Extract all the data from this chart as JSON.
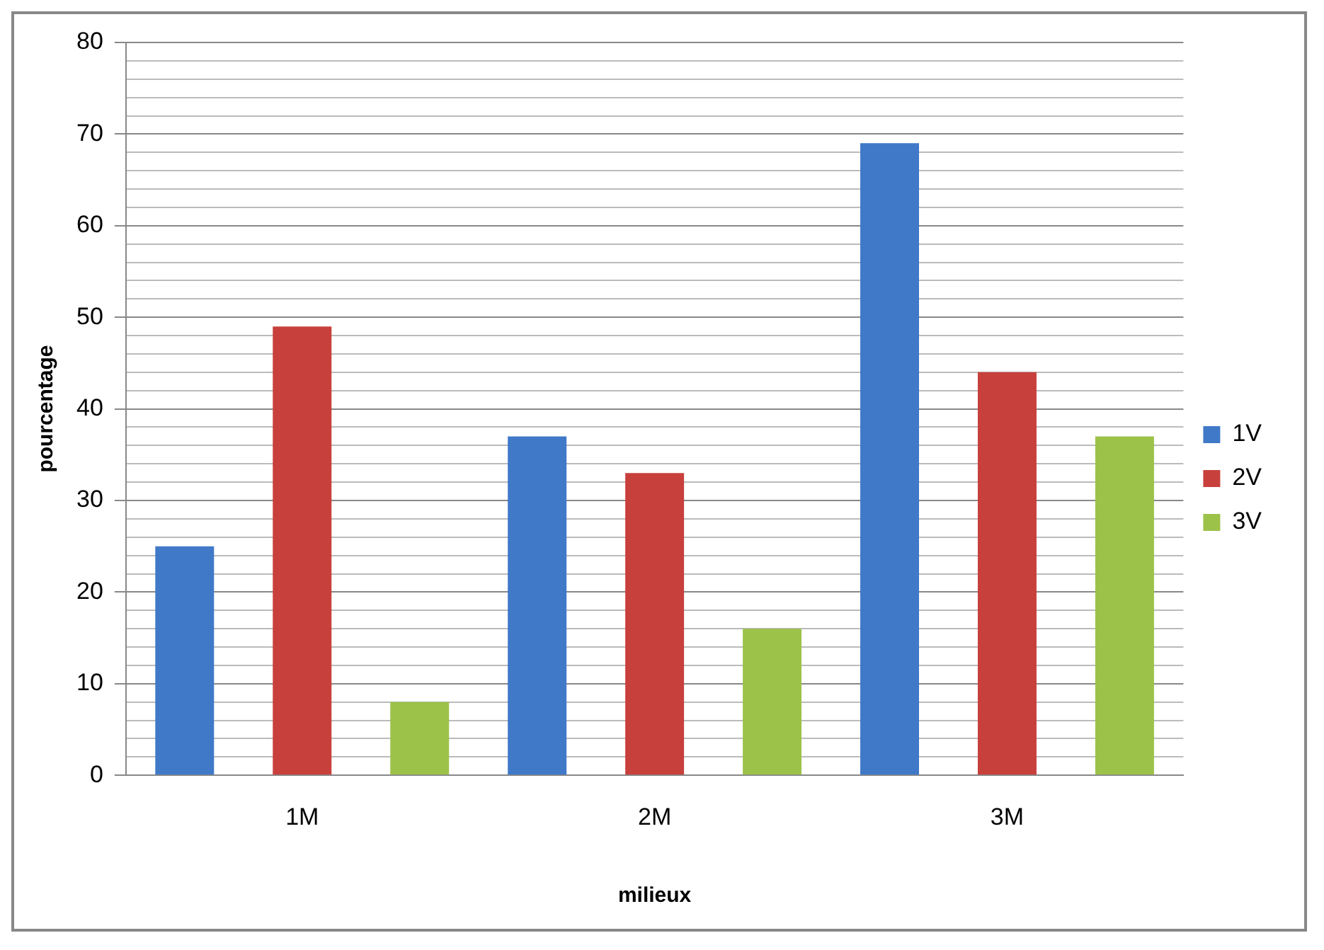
{
  "chart_data": {
    "type": "bar",
    "xlabel": "milieux",
    "ylabel": "pourcentage",
    "categories": [
      "1M",
      "2M",
      "3M"
    ],
    "series": [
      {
        "name": "1V",
        "color": "#4079c8",
        "values": [
          25,
          37,
          69
        ]
      },
      {
        "name": "2V",
        "color": "#c8403c",
        "values": [
          49,
          33,
          44
        ]
      },
      {
        "name": "3V",
        "color": "#9cc24a",
        "values": [
          8,
          16,
          37
        ]
      }
    ],
    "ylim": [
      0,
      80
    ],
    "yticks": [
      0,
      {
        "value": 2,
        "label": null
      },
      {
        "value": 4,
        "label": null
      },
      {
        "value": 6,
        "label": null
      },
      {
        "value": 8,
        "label": null
      },
      10,
      {
        "value": 12,
        "label": null
      },
      {
        "value": 14,
        "label": null
      },
      {
        "value": 16,
        "label": null
      },
      {
        "value": 18,
        "label": null
      },
      20,
      {
        "value": 22,
        "label": null
      },
      {
        "value": 24,
        "label": null
      },
      {
        "value": 26,
        "label": null
      },
      {
        "value": 28,
        "label": null
      },
      30,
      {
        "value": 32,
        "label": null
      },
      {
        "value": 34,
        "label": null
      },
      {
        "value": 36,
        "label": null
      },
      {
        "value": 38,
        "label": null
      },
      40,
      {
        "value": 42,
        "label": null
      },
      {
        "value": 44,
        "label": null
      },
      {
        "value": 46,
        "label": null
      },
      {
        "value": 48,
        "label": null
      },
      50,
      {
        "value": 52,
        "label": null
      },
      {
        "value": 54,
        "label": null
      },
      {
        "value": 56,
        "label": null
      },
      {
        "value": 58,
        "label": null
      },
      60,
      {
        "value": 62,
        "label": null
      },
      {
        "value": 64,
        "label": null
      },
      {
        "value": 66,
        "label": null
      },
      {
        "value": 68,
        "label": null
      },
      70,
      {
        "value": 72,
        "label": null
      },
      {
        "value": 74,
        "label": null
      },
      {
        "value": 76,
        "label": null
      },
      {
        "value": 78,
        "label": null
      },
      80
    ],
    "grid": "y",
    "legend": "right"
  }
}
